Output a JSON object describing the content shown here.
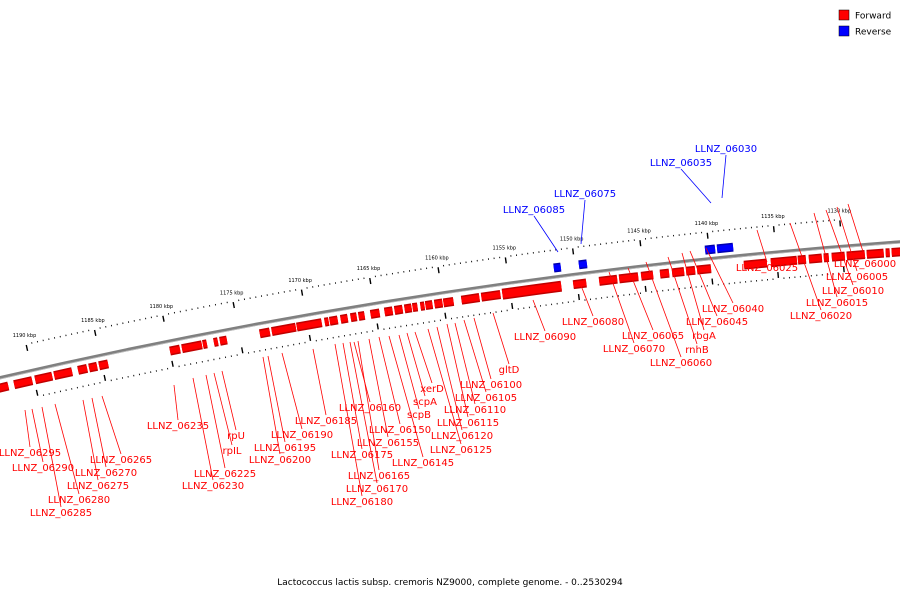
{
  "caption": "Lactococcus lactis subsp. cremoris NZ9000, complete genome. - 0..2530294",
  "legend": [
    {
      "label": "Forward",
      "color": "#ff0000"
    },
    {
      "label": "Reverse",
      "color": "#0000ff"
    }
  ],
  "colors": {
    "forward": "#ff0000",
    "reverse": "#0000ff",
    "backbone": "#808080"
  },
  "ticks": [
    "1130 kbp",
    "1135 kbp",
    "1140 kbp",
    "1145 kbp",
    "1150 kbp",
    "1155 kbp",
    "1160 kbp",
    "1165 kbp",
    "1170 kbp",
    "1175 kbp",
    "1180 kbp",
    "1185 kbp",
    "1190 kbp"
  ],
  "genes_reverse": [
    "LLNZ_06030",
    "LLNZ_06035",
    "LLNZ_06075",
    "LLNZ_06085"
  ],
  "genes_forward": [
    "LLNZ_06000",
    "LLNZ_06005",
    "LLNZ_06010",
    "LLNZ_06015",
    "LLNZ_06020",
    "LLNZ_06025",
    "LLNZ_06040",
    "LLNZ_06045",
    "rbgA",
    "rnhB",
    "LLNZ_06060",
    "LLNZ_06065",
    "LLNZ_06070",
    "LLNZ_06080",
    "LLNZ_06090",
    "gltD",
    "LLNZ_06100",
    "LLNZ_06105",
    "LLNZ_06110",
    "LLNZ_06115",
    "LLNZ_06120",
    "LLNZ_06125",
    "xerD",
    "scpA",
    "scpB",
    "LLNZ_06145",
    "LLNZ_06150",
    "LLNZ_06155",
    "LLNZ_06160",
    "LLNZ_06165",
    "LLNZ_06170",
    "LLNZ_06175",
    "LLNZ_06180",
    "LLNZ_06185",
    "LLNZ_06190",
    "LLNZ_06195",
    "LLNZ_06200",
    "rpU",
    "rpIL",
    "LLNZ_06225",
    "LLNZ_06230",
    "LLNZ_06235",
    "LLNZ_06265",
    "LLNZ_06270",
    "LLNZ_06275",
    "LLNZ_06280",
    "LLNZ_06285",
    "LLNZ_06290",
    "LLNZ_06295"
  ]
}
